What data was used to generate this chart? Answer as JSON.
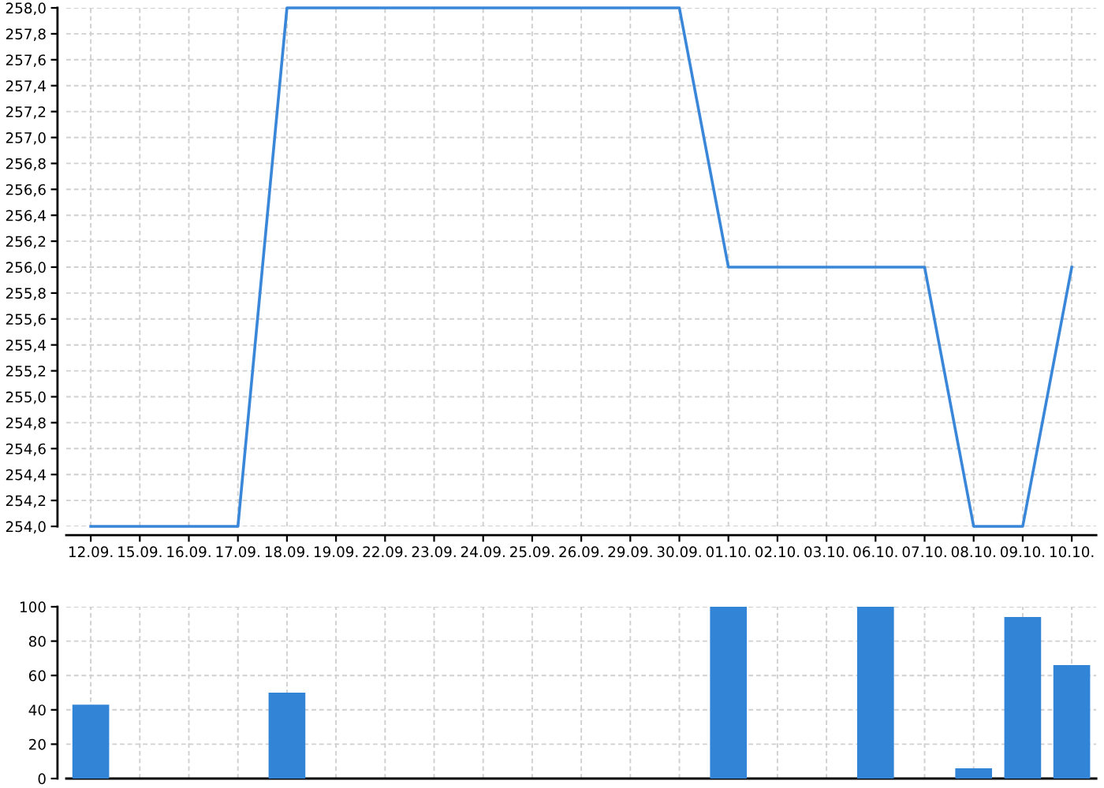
{
  "chart_data": [
    {
      "type": "line",
      "categories": [
        "12.09.",
        "15.09.",
        "16.09.",
        "17.09.",
        "18.09.",
        "19.09.",
        "22.09.",
        "23.09.",
        "24.09.",
        "25.09.",
        "26.09.",
        "29.09.",
        "30.09.",
        "01.10.",
        "02.10.",
        "03.10.",
        "06.10.",
        "07.10.",
        "08.10.",
        "09.10.",
        "10.10."
      ],
      "values": [
        254.0,
        254.0,
        254.0,
        254.0,
        258.0,
        258.0,
        258.0,
        258.0,
        258.0,
        258.0,
        258.0,
        258.0,
        258.0,
        256.0,
        256.0,
        256.0,
        256.0,
        256.0,
        254.0,
        254.0,
        256.0
      ],
      "color": "#3a87d9",
      "ylim": [
        254.0,
        258.0
      ],
      "yticks": [
        {
          "value": 254.0,
          "label": "254,0"
        },
        {
          "value": 254.2,
          "label": "254,2"
        },
        {
          "value": 254.4,
          "label": "254,4"
        },
        {
          "value": 254.6,
          "label": "254,6"
        },
        {
          "value": 254.8,
          "label": "254,8"
        },
        {
          "value": 255.0,
          "label": "255,0"
        },
        {
          "value": 255.2,
          "label": "255,2"
        },
        {
          "value": 255.4,
          "label": "255,4"
        },
        {
          "value": 255.6,
          "label": "255,6"
        },
        {
          "value": 255.8,
          "label": "255,8"
        },
        {
          "value": 256.0,
          "label": "256,0"
        },
        {
          "value": 256.2,
          "label": "256,2"
        },
        {
          "value": 256.4,
          "label": "256,4"
        },
        {
          "value": 256.6,
          "label": "256,6"
        },
        {
          "value": 256.8,
          "label": "256,8"
        },
        {
          "value": 257.0,
          "label": "257,0"
        },
        {
          "value": 257.2,
          "label": "257,2"
        },
        {
          "value": 257.4,
          "label": "257,4"
        },
        {
          "value": 257.6,
          "label": "257,6"
        },
        {
          "value": 257.8,
          "label": "257,8"
        },
        {
          "value": 258.0,
          "label": "258,0"
        }
      ],
      "grid": true
    },
    {
      "type": "bar",
      "categories": [
        "12.09.",
        "15.09.",
        "16.09.",
        "17.09.",
        "18.09.",
        "19.09.",
        "22.09.",
        "23.09.",
        "24.09.",
        "25.09.",
        "26.09.",
        "29.09.",
        "30.09.",
        "01.10.",
        "02.10.",
        "03.10.",
        "06.10.",
        "07.10.",
        "08.10.",
        "09.10.",
        "10.10."
      ],
      "values": [
        43,
        0,
        0,
        0,
        50,
        0,
        0,
        0,
        0,
        0,
        0,
        0,
        0,
        100,
        0,
        0,
        100,
        0,
        6,
        94,
        66
      ],
      "color": "#3284d6",
      "ylim": [
        0,
        100
      ],
      "yticks": [
        0,
        20,
        40,
        60,
        80,
        100
      ],
      "grid": true,
      "tick_labels": "y"
    }
  ]
}
